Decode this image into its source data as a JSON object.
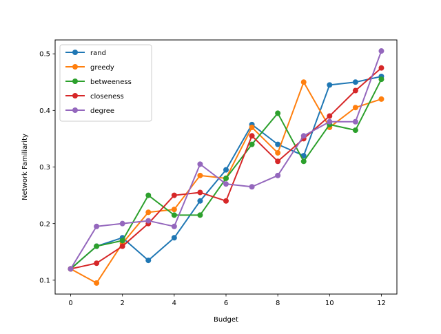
{
  "chart_data": {
    "type": "line",
    "title": "",
    "xlabel": "Budget",
    "ylabel": "Network Familiarity",
    "xlim": [
      -0.6,
      12.6
    ],
    "ylim": [
      0.0755,
      0.5245
    ],
    "xticks": [
      0,
      2,
      4,
      6,
      8,
      10,
      12
    ],
    "yticks": [
      0.1,
      0.2,
      0.3,
      0.4,
      0.5
    ],
    "grid": false,
    "legend_position": "top-left",
    "x": [
      0,
      1,
      2,
      3,
      4,
      5,
      6,
      7,
      8,
      9,
      10,
      11,
      12
    ],
    "series": [
      {
        "name": "rand",
        "color": "#1f77b4",
        "values": [
          0.12,
          0.16,
          0.175,
          0.135,
          0.175,
          0.24,
          0.295,
          0.375,
          0.34,
          0.32,
          0.445,
          0.45,
          0.46
        ]
      },
      {
        "name": "greedy",
        "color": "#ff7f0e",
        "values": [
          0.12,
          0.095,
          0.165,
          0.22,
          0.225,
          0.285,
          0.28,
          0.37,
          0.325,
          0.45,
          0.37,
          0.405,
          0.42
        ]
      },
      {
        "name": "betweeness",
        "color": "#2ca02c",
        "values": [
          0.12,
          0.16,
          0.17,
          0.25,
          0.215,
          0.215,
          0.28,
          0.34,
          0.395,
          0.31,
          0.375,
          0.365,
          0.455
        ]
      },
      {
        "name": "closeness",
        "color": "#d62728",
        "values": [
          0.12,
          0.13,
          0.16,
          0.2,
          0.25,
          0.255,
          0.24,
          0.355,
          0.31,
          0.35,
          0.39,
          0.435,
          0.475
        ]
      },
      {
        "name": "degree",
        "color": "#9467bd",
        "values": [
          0.12,
          0.195,
          0.2,
          0.205,
          0.195,
          0.305,
          0.27,
          0.265,
          0.285,
          0.355,
          0.38,
          0.38,
          0.505
        ]
      }
    ]
  }
}
